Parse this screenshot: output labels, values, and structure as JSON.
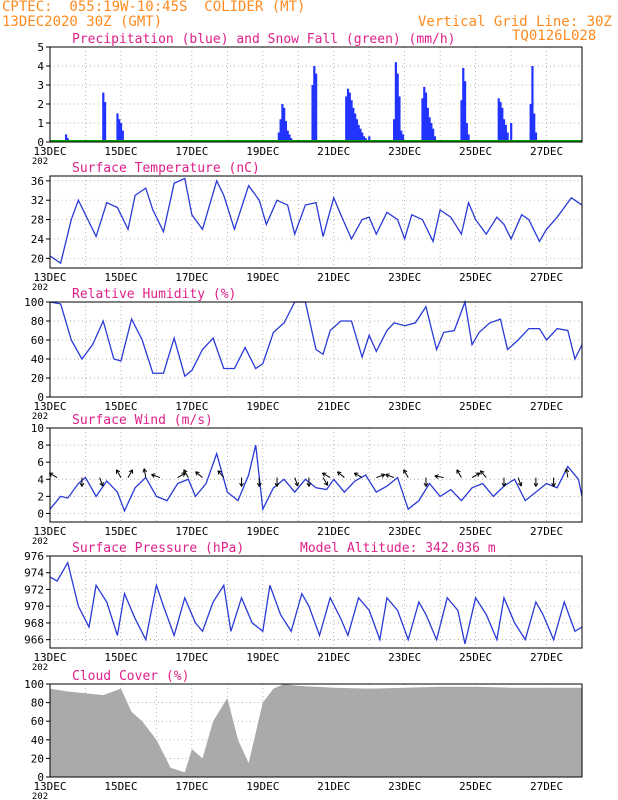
{
  "header": {
    "line1": "CPTEC:  055:19W-10:45S  COLIDER (MT)",
    "line2": "13DEC2020 30Z (GMT)",
    "right1": "Vertical Grid Line: 30Z",
    "right2": "TQ0126L028"
  },
  "colors": {
    "precip": "#2233ff",
    "snow": "#00a000",
    "series_line": "#2a3ad6",
    "title_text": "#e0208a",
    "header_text": "#ff8a1f",
    "cloud_fill": "#aaaaaa"
  },
  "x_axis": {
    "date_labels": [
      "13DEC",
      "15DEC",
      "17DEC",
      "19DEC",
      "21DEC",
      "23DEC",
      "25DEC",
      "27DEC"
    ],
    "start_day": 13,
    "end_day": 28,
    "tick_fragment": "202"
  },
  "chart_data": [
    {
      "id": "precip",
      "type": "bar",
      "title": "Precipitation (blue) and Snow Fall (green) (mm/h)",
      "ylim": [
        0,
        5
      ],
      "yticks": [
        0,
        1,
        2,
        3,
        4,
        5
      ],
      "grid": true,
      "series": [
        {
          "name": "precipitation",
          "color": "#2233ff",
          "x": [
            13.45,
            13.5,
            14.5,
            14.55,
            14.9,
            14.95,
            15.0,
            15.05,
            19.45,
            19.5,
            19.55,
            19.6,
            19.65,
            19.7,
            19.75,
            19.8,
            20.4,
            20.45,
            20.5,
            21.35,
            21.4,
            21.45,
            21.5,
            21.55,
            21.6,
            21.65,
            21.7,
            21.75,
            21.8,
            21.85,
            21.9,
            22.0,
            22.7,
            22.75,
            22.8,
            22.85,
            22.9,
            22.95,
            23.5,
            23.55,
            23.6,
            23.65,
            23.7,
            23.75,
            23.8,
            23.85,
            24.6,
            24.65,
            24.7,
            24.75,
            24.8,
            25.65,
            25.7,
            25.75,
            25.8,
            25.85,
            25.9,
            26.0,
            26.55,
            26.6,
            26.65,
            26.7
          ],
          "values": [
            0.4,
            0.2,
            2.6,
            2.1,
            1.5,
            1.2,
            1.0,
            0.6,
            0.5,
            1.2,
            2.0,
            1.8,
            1.1,
            0.6,
            0.4,
            0.2,
            3.0,
            4.0,
            3.6,
            2.4,
            2.8,
            2.6,
            2.2,
            1.8,
            1.5,
            1.2,
            0.9,
            0.7,
            0.5,
            0.3,
            0.2,
            0.3,
            1.2,
            4.2,
            3.6,
            2.4,
            0.6,
            0.4,
            2.3,
            2.9,
            2.6,
            1.8,
            1.3,
            1.0,
            0.7,
            0.3,
            2.2,
            3.9,
            3.2,
            1.0,
            0.4,
            2.3,
            2.1,
            1.8,
            1.2,
            0.9,
            0.5,
            1.0,
            2.0,
            4.0,
            1.5,
            0.5
          ]
        },
        {
          "name": "snow fall",
          "color": "#00a000",
          "x": [
            13,
            28
          ],
          "values": [
            0.05,
            0.05
          ]
        }
      ]
    },
    {
      "id": "temp",
      "type": "line",
      "title": "Surface Temperature (nC)",
      "ylim": [
        18,
        37
      ],
      "yticks": [
        20,
        24,
        28,
        32,
        36
      ],
      "grid": true,
      "series": [
        {
          "x": [
            13.0,
            13.3,
            13.6,
            13.8,
            14.0,
            14.3,
            14.6,
            14.9,
            15.2,
            15.4,
            15.7,
            15.9,
            16.2,
            16.5,
            16.8,
            17.0,
            17.3,
            17.7,
            17.9,
            18.2,
            18.6,
            18.9,
            19.1,
            19.4,
            19.7,
            19.9,
            20.2,
            20.5,
            20.7,
            21.0,
            21.2,
            21.5,
            21.8,
            22.0,
            22.2,
            22.5,
            22.8,
            23.0,
            23.2,
            23.5,
            23.8,
            24.0,
            24.3,
            24.6,
            24.8,
            25.0,
            25.3,
            25.6,
            25.8,
            26.0,
            26.3,
            26.5,
            26.8,
            27.0,
            27.3,
            27.7,
            28.0
          ],
          "values": [
            20.5,
            19.0,
            28.0,
            32.0,
            29.0,
            24.5,
            31.5,
            30.5,
            26.0,
            33.0,
            34.5,
            30.0,
            25.5,
            35.5,
            36.5,
            29.0,
            26.0,
            36.0,
            33.0,
            26.0,
            35.0,
            32.0,
            27.0,
            32.0,
            31.0,
            25.0,
            31.0,
            31.5,
            24.5,
            32.5,
            29.0,
            24.0,
            28.0,
            28.5,
            25.0,
            29.5,
            28.0,
            24.0,
            29.0,
            28.0,
            23.5,
            30.0,
            28.5,
            25.0,
            31.5,
            28.0,
            25.0,
            28.5,
            27.0,
            24.0,
            29.0,
            28.0,
            23.5,
            26.0,
            28.5,
            32.5,
            31.0
          ]
        }
      ]
    },
    {
      "id": "rh",
      "type": "line",
      "title": "Relative Humidity (%)",
      "ylim": [
        0,
        100
      ],
      "yticks": [
        0,
        20,
        40,
        60,
        80,
        100
      ],
      "grid": true,
      "series": [
        {
          "x": [
            13.0,
            13.3,
            13.6,
            13.9,
            14.2,
            14.5,
            14.8,
            15.0,
            15.3,
            15.6,
            15.9,
            16.2,
            16.5,
            16.8,
            17.0,
            17.3,
            17.6,
            17.9,
            18.2,
            18.5,
            18.8,
            19.0,
            19.3,
            19.6,
            19.9,
            20.2,
            20.5,
            20.7,
            20.9,
            21.2,
            21.5,
            21.8,
            22.0,
            22.2,
            22.5,
            22.7,
            23.0,
            23.3,
            23.6,
            23.9,
            24.1,
            24.4,
            24.7,
            24.9,
            25.1,
            25.4,
            25.7,
            25.9,
            26.2,
            26.5,
            26.8,
            27.0,
            27.3,
            27.6,
            27.8,
            28.0
          ],
          "values": [
            100,
            98,
            60,
            40,
            55,
            80,
            40,
            38,
            82,
            60,
            25,
            25,
            62,
            22,
            28,
            50,
            62,
            30,
            30,
            52,
            30,
            35,
            68,
            78,
            100,
            100,
            50,
            45,
            70,
            80,
            80,
            42,
            65,
            48,
            70,
            78,
            75,
            78,
            95,
            50,
            68,
            70,
            100,
            55,
            68,
            78,
            82,
            50,
            60,
            72,
            72,
            60,
            72,
            70,
            40,
            55
          ]
        }
      ]
    },
    {
      "id": "wind",
      "type": "line",
      "title": "Surface Wind (m/s)",
      "ylim": [
        -1,
        10
      ],
      "yticks": [
        0,
        2,
        4,
        6,
        8,
        10
      ],
      "grid": true,
      "series": [
        {
          "x": [
            13.0,
            13.3,
            13.5,
            13.8,
            14.0,
            14.3,
            14.6,
            14.9,
            15.1,
            15.4,
            15.7,
            16.0,
            16.3,
            16.6,
            16.9,
            17.1,
            17.4,
            17.7,
            18.0,
            18.3,
            18.6,
            18.8,
            19.0,
            19.3,
            19.6,
            19.9,
            20.2,
            20.5,
            20.8,
            21.0,
            21.3,
            21.6,
            21.9,
            22.2,
            22.5,
            22.8,
            23.1,
            23.4,
            23.7,
            24.0,
            24.3,
            24.6,
            24.9,
            25.2,
            25.5,
            25.8,
            26.1,
            26.4,
            26.7,
            27.0,
            27.3,
            27.6,
            27.9,
            28.0
          ],
          "values": [
            0.5,
            2.0,
            1.8,
            3.5,
            4.2,
            2.0,
            3.8,
            2.5,
            0.3,
            3.0,
            4.2,
            2.0,
            1.5,
            3.5,
            4.0,
            2.0,
            3.5,
            7.0,
            2.5,
            1.5,
            4.5,
            8.0,
            0.5,
            3.0,
            4.0,
            2.5,
            4.0,
            3.0,
            2.8,
            4.0,
            2.5,
            3.8,
            4.5,
            2.5,
            3.2,
            4.2,
            0.5,
            1.5,
            3.5,
            2.0,
            2.8,
            1.5,
            3.0,
            3.5,
            2.0,
            3.2,
            4.0,
            1.5,
            2.5,
            3.5,
            3.0,
            5.5,
            4.0,
            2.0
          ]
        }
      ],
      "direction_arrows": "wind direction arrows drawn along the series"
    },
    {
      "id": "pressure",
      "type": "line",
      "title": "Surface Pressure (hPa)",
      "annotation": "Model Altitude: 342.036 m",
      "ylim": [
        965,
        976
      ],
      "yticks": [
        966,
        968,
        970,
        972,
        974,
        976
      ],
      "grid": true,
      "series": [
        {
          "x": [
            13.0,
            13.2,
            13.5,
            13.8,
            14.1,
            14.3,
            14.6,
            14.9,
            15.1,
            15.4,
            15.7,
            16.0,
            16.2,
            16.5,
            16.8,
            17.1,
            17.3,
            17.6,
            17.9,
            18.1,
            18.4,
            18.7,
            19.0,
            19.2,
            19.5,
            19.8,
            20.1,
            20.3,
            20.6,
            20.9,
            21.2,
            21.4,
            21.7,
            22.0,
            22.3,
            22.5,
            22.8,
            23.1,
            23.4,
            23.6,
            23.9,
            24.2,
            24.5,
            24.7,
            25.0,
            25.3,
            25.6,
            25.8,
            26.1,
            26.4,
            26.7,
            26.9,
            27.2,
            27.5,
            27.8,
            28.0
          ],
          "values": [
            973.5,
            973.0,
            975.2,
            970.0,
            967.5,
            972.5,
            970.5,
            966.5,
            971.5,
            968.5,
            966.0,
            972.5,
            970.0,
            966.5,
            971.0,
            968.0,
            967.0,
            970.5,
            972.5,
            967.0,
            971.0,
            968.0,
            967.0,
            972.5,
            969.0,
            967.0,
            971.5,
            970.0,
            966.5,
            971.0,
            968.5,
            966.5,
            971.0,
            969.5,
            966.0,
            971.0,
            969.5,
            966.0,
            970.5,
            969.0,
            966.0,
            971.0,
            969.5,
            965.5,
            971.0,
            969.0,
            966.0,
            971.0,
            968.0,
            966.0,
            970.5,
            969.0,
            966.0,
            970.5,
            967.0,
            967.5
          ]
        }
      ]
    },
    {
      "id": "cloud",
      "type": "area",
      "title": "Cloud Cover (%)",
      "ylim": [
        0,
        100
      ],
      "yticks": [
        0,
        20,
        40,
        60,
        80,
        100
      ],
      "grid": true,
      "series": [
        {
          "x": [
            13.0,
            13.5,
            14.0,
            14.5,
            15.0,
            15.3,
            15.6,
            16.0,
            16.4,
            16.8,
            17.0,
            17.3,
            17.6,
            18.0,
            18.3,
            18.6,
            19.0,
            19.3,
            19.6,
            20.0,
            20.5,
            21.0,
            22.0,
            23.0,
            24.0,
            25.0,
            26.0,
            27.0,
            28.0
          ],
          "values": [
            95,
            92,
            90,
            88,
            95,
            70,
            60,
            40,
            10,
            5,
            30,
            20,
            60,
            85,
            40,
            15,
            80,
            95,
            100,
            98,
            97,
            96,
            95,
            96,
            97,
            97,
            96,
            96,
            96
          ]
        }
      ]
    }
  ]
}
